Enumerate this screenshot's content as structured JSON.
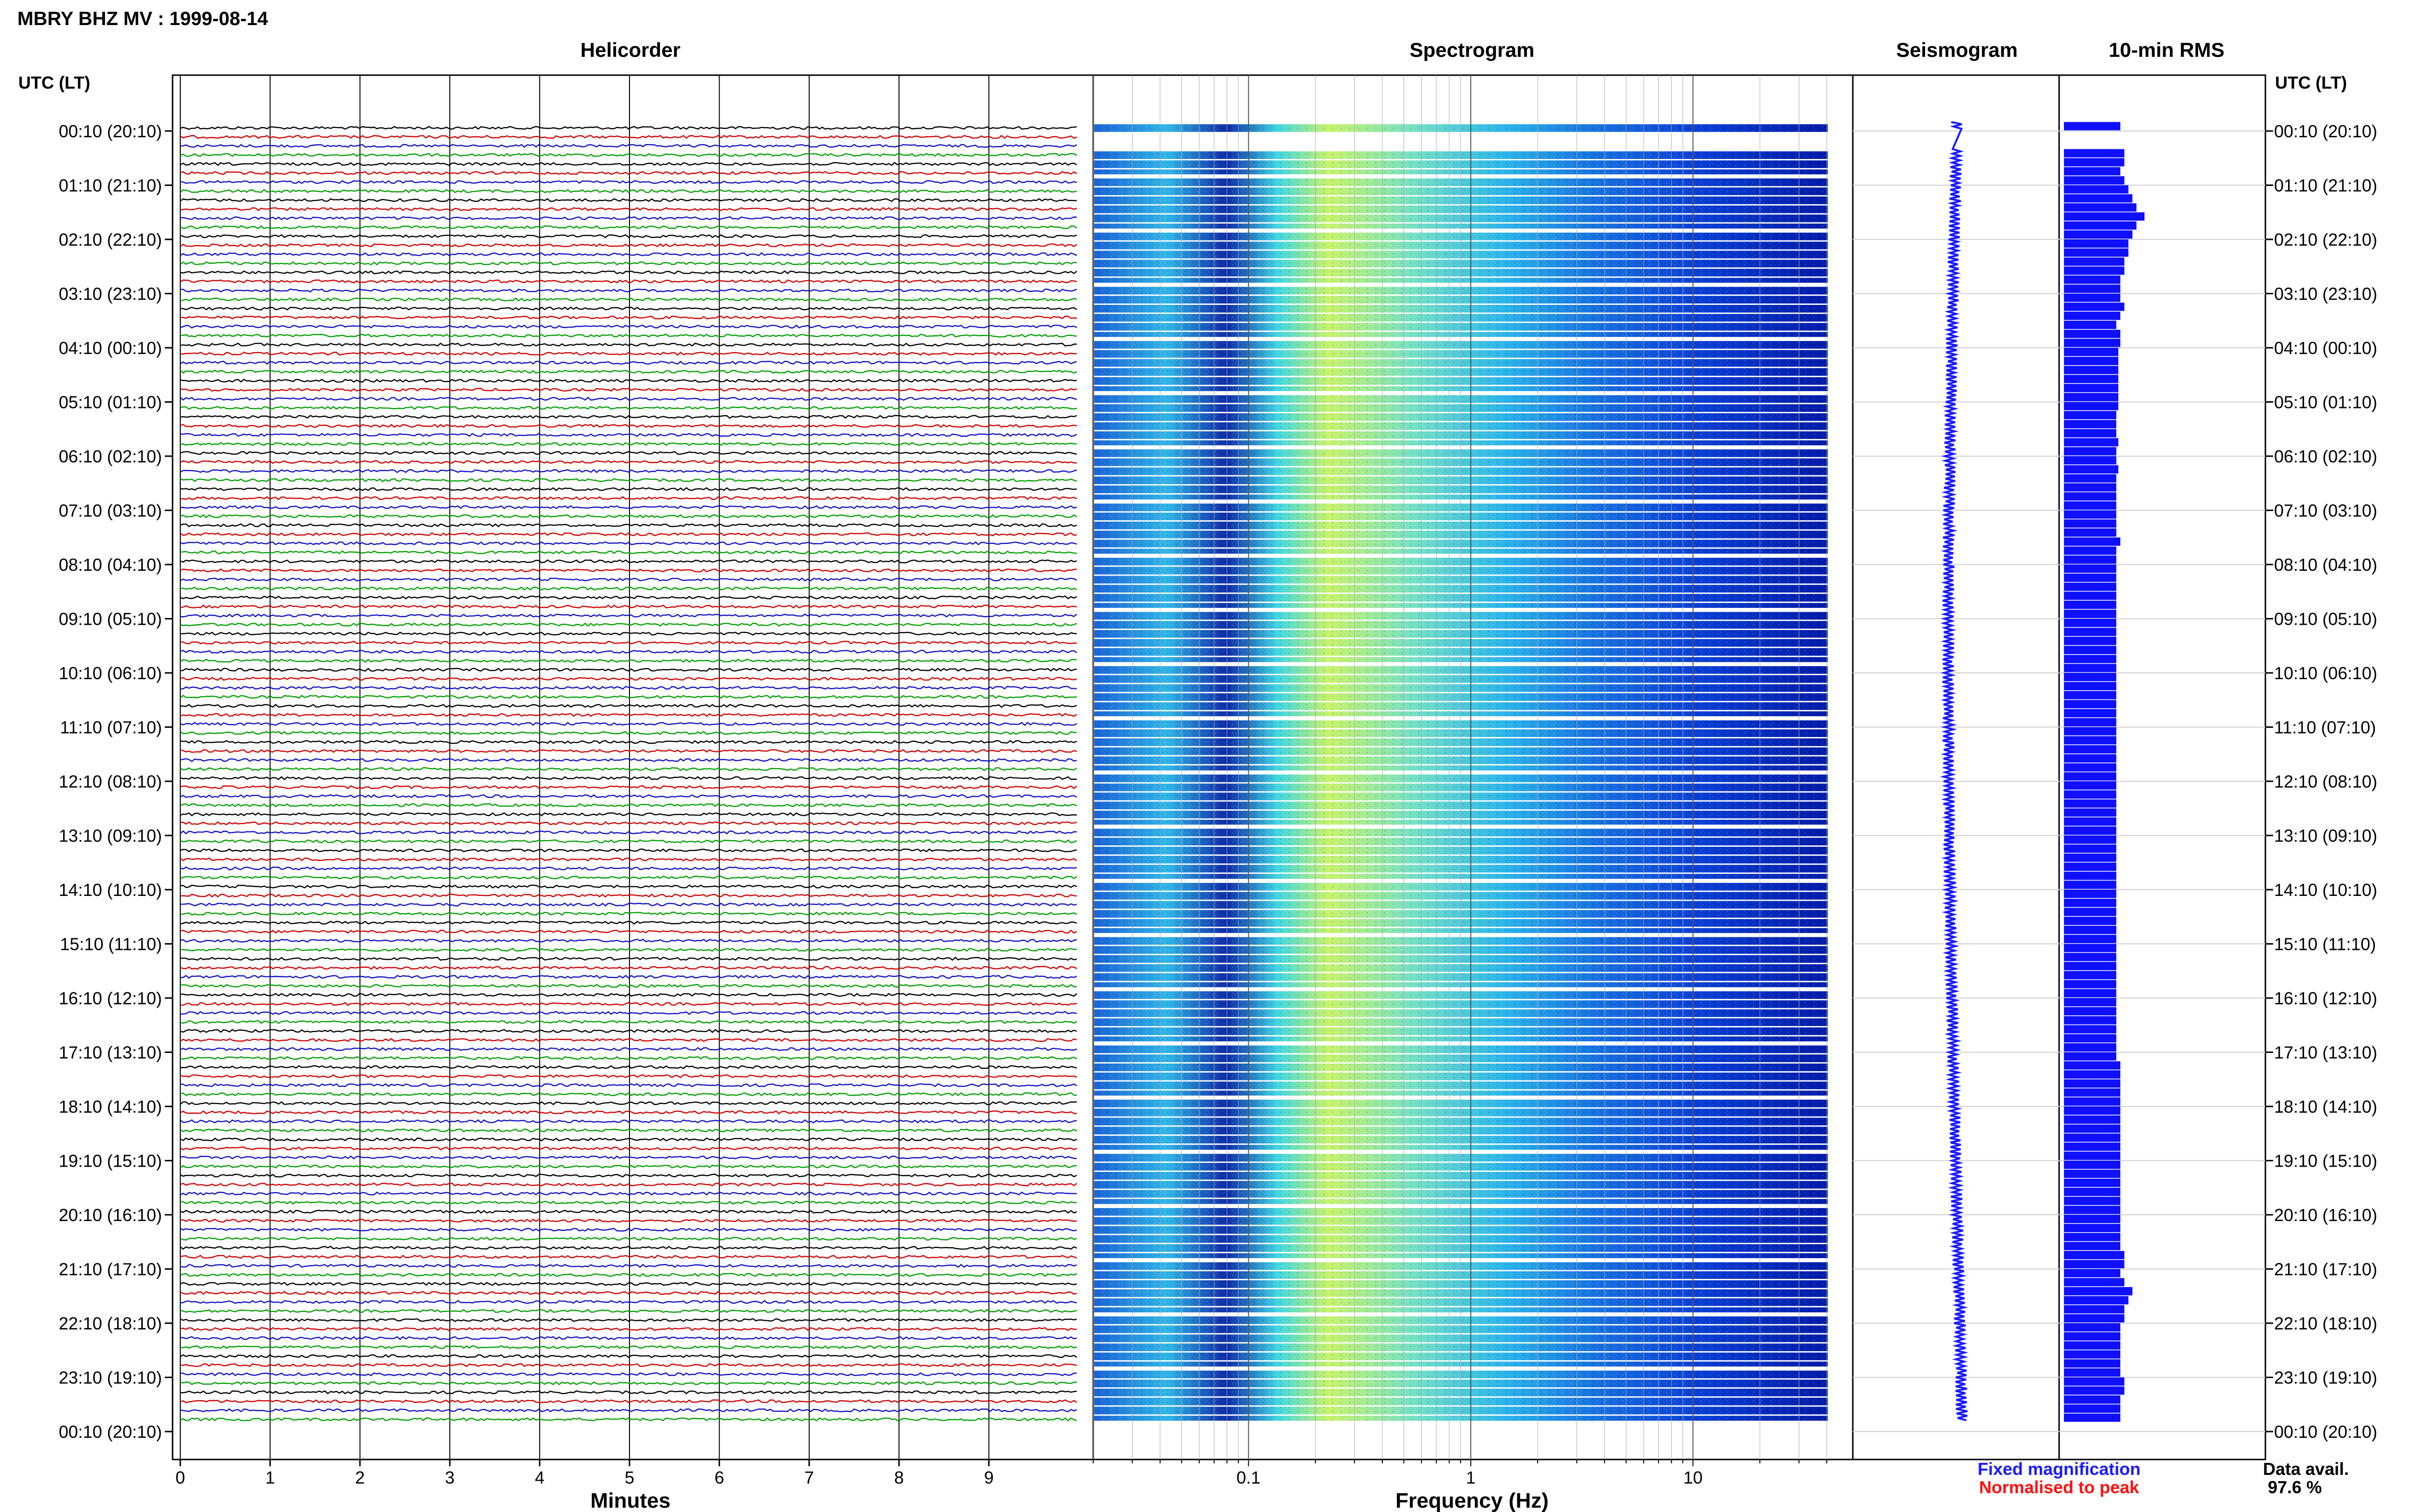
{
  "chart_data": {
    "type": "heatmap",
    "title": "MBRY BHZ MV : 1999-08-14",
    "panels": {
      "helicorder": "Helicorder",
      "spectrogram": "Spectrogram",
      "seismogram": "Seismogram",
      "rms": "10-min RMS"
    },
    "time_axis_header": "UTC (LT)",
    "time_labels": [
      "00:10 (20:10)",
      "01:10 (21:10)",
      "02:10 (22:10)",
      "03:10 (23:10)",
      "04:10 (00:10)",
      "05:10 (01:10)",
      "06:10 (02:10)",
      "07:10 (03:10)",
      "08:10 (04:10)",
      "09:10 (05:10)",
      "10:10 (06:10)",
      "11:10 (07:10)",
      "12:10 (08:10)",
      "13:10 (09:10)",
      "14:10 (10:10)",
      "15:10 (11:10)",
      "16:10 (12:10)",
      "17:10 (13:10)",
      "18:10 (14:10)",
      "19:10 (15:10)",
      "20:10 (16:10)",
      "21:10 (17:10)",
      "22:10 (18:10)",
      "23:10 (19:10)",
      "00:10 (20:10)"
    ],
    "helicorder_x": {
      "label": "Minutes",
      "ticks": [
        "0",
        "1",
        "2",
        "3",
        "4",
        "5",
        "6",
        "7",
        "8",
        "9"
      ],
      "range": [
        0,
        10
      ]
    },
    "helicorder_trace_colors": [
      "#000000",
      "#d40000",
      "#1010c8",
      "#00a000"
    ],
    "spectrogram_x": {
      "label": "Frequency (Hz)",
      "scale": "log",
      "ticks": [
        "0.1",
        "1",
        "10"
      ],
      "range": [
        0.02,
        40
      ]
    },
    "rows_per_hour": 6,
    "total_rows": 144,
    "data_gap_rows": [
      1,
      2
    ],
    "rms_relative_levels": [
      0.28,
      0.3,
      0.3,
      0.3,
      0.3,
      0.28,
      0.3,
      0.32,
      0.34,
      0.36,
      0.4,
      0.36,
      0.34,
      0.32,
      0.32,
      0.3,
      0.3,
      0.28,
      0.28,
      0.28,
      0.3,
      0.28,
      0.26,
      0.28,
      0.28,
      0.27,
      0.27,
      0.27,
      0.27,
      0.27,
      0.27,
      0.27,
      0.26,
      0.26,
      0.26,
      0.27,
      0.26,
      0.26,
      0.27,
      0.26,
      0.26,
      0.26,
      0.26,
      0.26,
      0.26,
      0.26,
      0.28,
      0.26,
      0.26,
      0.26,
      0.26,
      0.26,
      0.26,
      0.26,
      0.26,
      0.26,
      0.26,
      0.26,
      0.26,
      0.26,
      0.26,
      0.26,
      0.26,
      0.26,
      0.26,
      0.26,
      0.26,
      0.26,
      0.26,
      0.26,
      0.26,
      0.26,
      0.26,
      0.26,
      0.26,
      0.26,
      0.26,
      0.26,
      0.26,
      0.26,
      0.26,
      0.26,
      0.26,
      0.26,
      0.26,
      0.26,
      0.26,
      0.26,
      0.26,
      0.26,
      0.26,
      0.26,
      0.26,
      0.26,
      0.26,
      0.26,
      0.26,
      0.26,
      0.26,
      0.26,
      0.26,
      0.26,
      0.26,
      0.26,
      0.28,
      0.28,
      0.28,
      0.28,
      0.28,
      0.28,
      0.28,
      0.28,
      0.28,
      0.28,
      0.28,
      0.28,
      0.28,
      0.28,
      0.28,
      0.28,
      0.28,
      0.28,
      0.28,
      0.28,
      0.28,
      0.3,
      0.3,
      0.28,
      0.3,
      0.34,
      0.32,
      0.3,
      0.3,
      0.28,
      0.28,
      0.28,
      0.28,
      0.28,
      0.28,
      0.3,
      0.3,
      0.28,
      0.28,
      0.28
    ],
    "legend": {
      "fixed": "Fixed magnification",
      "fixed_color": "#1a1aff",
      "normalised": "Normalised to peak",
      "normalised_color": "#ff1010"
    },
    "availability": {
      "label": "Data avail.",
      "value": "97.6 %"
    }
  }
}
